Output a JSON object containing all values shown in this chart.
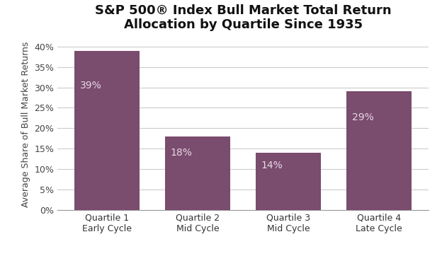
{
  "title_line1": "S&P 500® Index Bull Market Total Return",
  "title_line2": "Allocation by Quartile Since 1935",
  "categories": [
    "Quartile 1\nEarly Cycle",
    "Quartile 2\nMid Cycle",
    "Quartile 3\nMid Cycle",
    "Quartile 4\nLate Cycle"
  ],
  "values": [
    39,
    18,
    14,
    29
  ],
  "labels": [
    "39%",
    "18%",
    "14%",
    "29%"
  ],
  "bar_color": "#7a4c6d",
  "background_color": "#ffffff",
  "ylabel": "Average Share of Bull Market Returns",
  "ylim": [
    0,
    42
  ],
  "yticks": [
    0,
    5,
    10,
    15,
    20,
    25,
    30,
    35,
    40
  ],
  "label_color": "#e8d8e8",
  "label_fontsize": 10,
  "title_fontsize": 13,
  "ylabel_fontsize": 9,
  "tick_fontsize": 9
}
